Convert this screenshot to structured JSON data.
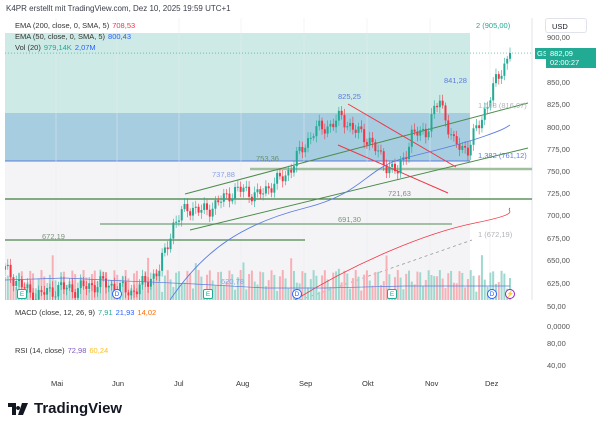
{
  "header": "K4PR erstellt mit TradingView.com, Dez 10, 2025 19:59 UTC+1",
  "legend": {
    "ema200": {
      "label": "EMA (200, close, 0, SMA, 5)",
      "value": "708,53",
      "color": "#f23645"
    },
    "ema50": {
      "label": "EMA (50, close, 0, SMA, 5)",
      "value": "800,43",
      "color": "#2962ff"
    },
    "vol": {
      "label": "Vol (20)",
      "value1": "979,14K",
      "value2": "2,07M"
    },
    "macd": {
      "label": "MACD (close, 12, 26, 9)",
      "v1": "7,91",
      "v2": "21,93",
      "v3": "14,02"
    },
    "rsi": {
      "label": "RSI (14, close)",
      "v1": "72,98",
      "v2": "60,24"
    }
  },
  "price_axis": {
    "currency": "USD",
    "ticks": [
      "900,00",
      "850,00",
      "825,00",
      "800,00",
      "775,00",
      "750,00",
      "725,00",
      "700,00",
      "675,00",
      "650,00",
      "625,00"
    ],
    "macd_ticks": [
      "50,00",
      "0,0000"
    ],
    "rsi_ticks": [
      "80,00",
      "40,00"
    ]
  },
  "last_price": {
    "symbol": "GS",
    "price": "882,09",
    "countdown": "02:00:27",
    "color": "#22ab94"
  },
  "annotations": {
    "fib2": "2 (905,00)",
    "high": "841,28",
    "peak": "825,25",
    "fib1618": "1,618 (816,07)",
    "fib1382": "1,382 (761,12)",
    "l753": "753,36",
    "l737": "737,88",
    "l721": "721,63",
    "l691": "691,30",
    "l672": "672,19",
    "fib1": "1 (672,19)",
    "l620": "620,78"
  },
  "months": [
    "Mai",
    "Jun",
    "Jul",
    "Aug",
    "Sep",
    "Okt",
    "Nov",
    "Dez"
  ],
  "events": [
    "E",
    "D",
    "E",
    "D",
    "E",
    "D",
    "⚡"
  ],
  "brand": "TradingView",
  "chart_data": {
    "type": "candlestick",
    "symbol": "GS",
    "currency": "USD",
    "ylim": [
      610,
      915
    ],
    "weekly_close_anchors": [
      640,
      625,
      610,
      615,
      620,
      618,
      622,
      625,
      620,
      615,
      625,
      640,
      690,
      710,
      705,
      712,
      725,
      730,
      722,
      735,
      745,
      770,
      795,
      800,
      810,
      795,
      785,
      760,
      748,
      790,
      795,
      830,
      780,
      775,
      810,
      850,
      882.09
    ],
    "levels": [
      905,
      841.28,
      825.25,
      816.07,
      761.12,
      753.36,
      737.88,
      721.63,
      691.3,
      672.19,
      620.78
    ]
  }
}
